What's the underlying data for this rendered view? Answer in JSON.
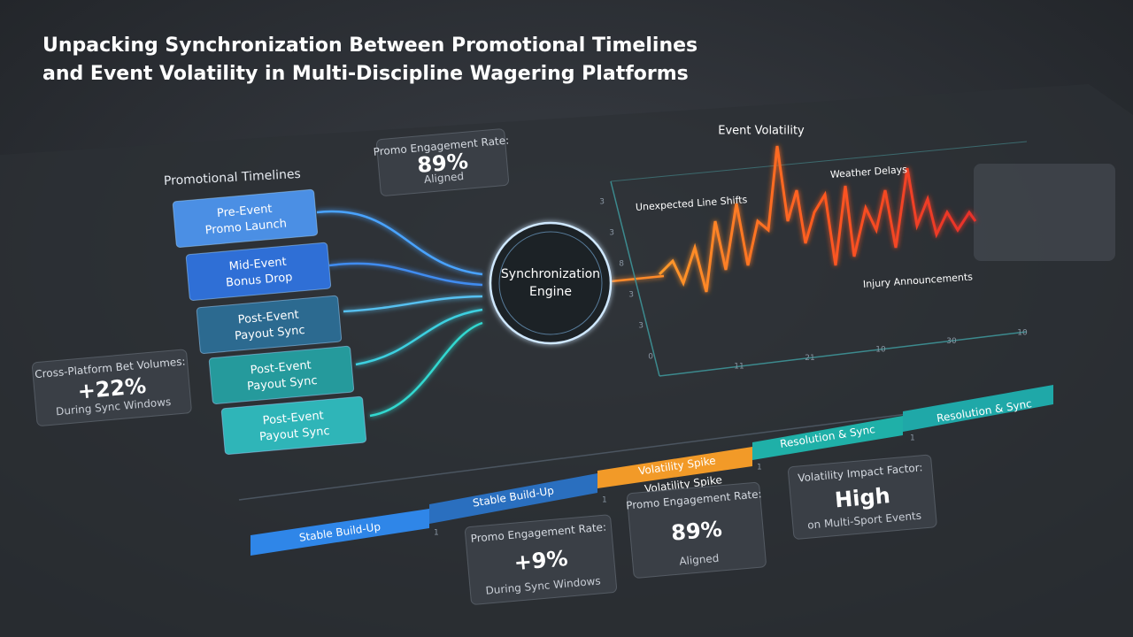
{
  "header": {
    "title_lines": [
      "Unpacking Synchronization Between Promotional Timelines",
      "and Event Volatility in Multi-Discipline Wagering Platforms"
    ]
  },
  "promotional_timelines": {
    "label": "Promotional Timelines",
    "items": [
      [
        "Pre-Event",
        "Promo Launch"
      ],
      [
        "Mid-Event",
        "Bonus Drop"
      ],
      [
        "Post-Event",
        "Payout Sync"
      ],
      [
        "Post-Event",
        "Payout Sync"
      ],
      [
        "Post-Event",
        "Payout Sync"
      ]
    ]
  },
  "cards": [
    {
      "label": "Promo Engagement Rate:",
      "value": "89%",
      "note": "Aligned"
    },
    {
      "label": "Cross-Platform Bet Volumes:",
      "value": "+22%",
      "note": "During Sync Windows"
    },
    {
      "label": "Promo Engagement Rate:",
      "value": "+9%",
      "note": "During Sync Windows"
    },
    {
      "label": "Promo Engagement Rate:",
      "value": "89%",
      "note": "Aligned"
    },
    {
      "label": "Volatility Impact Factor:",
      "value": "High",
      "note": "on Multi-Sport Events"
    }
  ],
  "engine": {
    "label_lines": [
      "Synchronization",
      "Engine"
    ]
  },
  "volatility_chart": {
    "title": "Event Volatility",
    "annotations": [
      "Unexpected Line Shifts",
      "Weather Delays",
      "Injury Announcements"
    ],
    "y_labels": [
      "3",
      "3",
      "8",
      "3",
      "3",
      "0"
    ],
    "x_labels": [
      "11",
      "21",
      "10",
      "30",
      "10"
    ]
  },
  "timeline": {
    "segments": [
      "Stable Build-Up",
      "Stable Build-Up",
      "Volatility Spike",
      "Resolution & Sync",
      "Resolution & Sync"
    ],
    "sub_label": "Volatility Spike",
    "markers": [
      "1",
      "1",
      "1",
      "1"
    ]
  }
}
